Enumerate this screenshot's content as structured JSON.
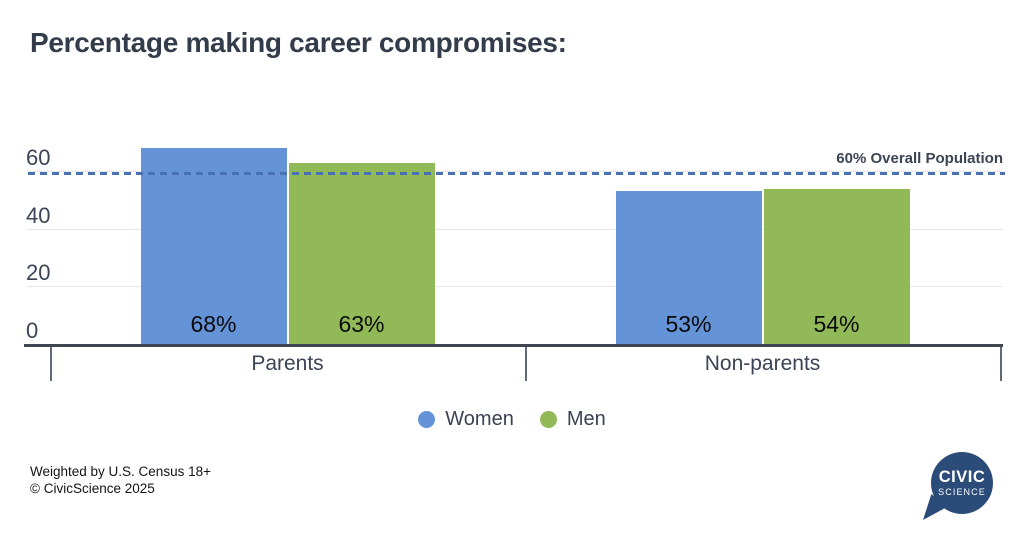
{
  "title": "Percentage making career compromises:",
  "chart_data": {
    "type": "bar",
    "categories": [
      "Parents",
      "Non-parents"
    ],
    "series": [
      {
        "name": "Women",
        "color": "#6493d7",
        "values": [
          68,
          53
        ]
      },
      {
        "name": "Men",
        "color": "#92b957",
        "values": [
          63,
          54
        ]
      }
    ],
    "value_suffix": "%",
    "yticks": [
      0,
      20,
      40,
      60
    ],
    "ylim": [
      0,
      70
    ],
    "grid": true,
    "legend_position": "bottom",
    "reference_line": {
      "value": 60,
      "label": "60% Overall Population",
      "color": "#4a72b2",
      "style": "dashed"
    }
  },
  "footer": {
    "line1": "Weighted by U.S. Census 18+",
    "line2": "© CivicScience 2025"
  },
  "logo": {
    "line1": "CIVIC",
    "line2": "SCIENCE"
  }
}
